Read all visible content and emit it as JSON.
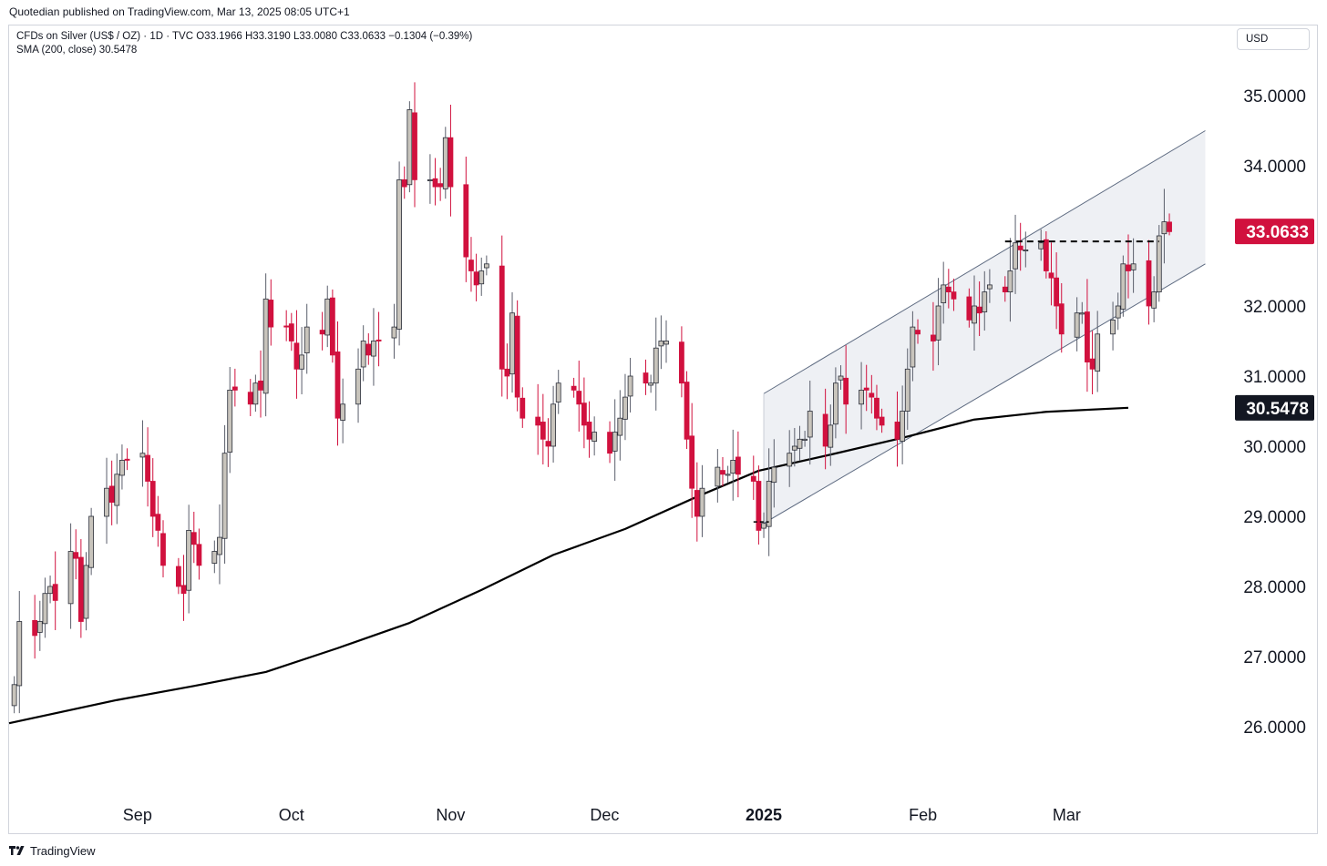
{
  "header": {
    "published": "Quotedian published on TradingView.com, Mar 13, 2025 08:05 UTC+1"
  },
  "legend": {
    "line1": "CFDs on Silver (US$ / OZ) · 1D · TVC  O33.1966  H33.3190  L33.0080  C33.0633  −0.1304 (−0.39%)",
    "line2": "SMA (200, close)  30.5478"
  },
  "currency_button": "USD",
  "footer": {
    "brand": "TradingView"
  },
  "colors": {
    "up_body": "#c8c4bc",
    "up_border": "#2a2e39",
    "down": "#d1113e",
    "wick": "#5a5e6b",
    "sma": "#000000",
    "channel_fill": "#eef0f4",
    "channel_line": "#5d6a80",
    "last_price_bg": "#d1113e",
    "sma_tag_bg": "#131722"
  },
  "chart_data": {
    "type": "candlestick",
    "instrument": "CFDs on Silver (US$ / OZ)",
    "interval": "1D",
    "exchange": "TVC",
    "ohlc_last": {
      "open": 33.1966,
      "high": 33.319,
      "low": 33.008,
      "close": 33.0633,
      "change": -0.1304,
      "change_pct": -0.39
    },
    "ylim": [
      25.0,
      36.0
    ],
    "y_ticks": [
      "26.0000",
      "27.0000",
      "28.0000",
      "29.0000",
      "30.0000",
      "31.0000",
      "32.0000",
      "33.0000",
      "34.0000",
      "35.0000"
    ],
    "y_tick_values": [
      26,
      27,
      28,
      29,
      30,
      31,
      32,
      33,
      34,
      35
    ],
    "x_labels": [
      {
        "text": "Sep",
        "bold": false,
        "date": "2024-09-01"
      },
      {
        "text": "Oct",
        "bold": false,
        "date": "2024-10-01"
      },
      {
        "text": "Nov",
        "bold": false,
        "date": "2024-11-01"
      },
      {
        "text": "Dec",
        "bold": false,
        "date": "2024-12-01"
      },
      {
        "text": "2025",
        "bold": true,
        "date": "2025-01-01"
      },
      {
        "text": "Feb",
        "bold": false,
        "date": "2025-02-01"
      },
      {
        "text": "Mar",
        "bold": false,
        "date": "2025-03-01"
      }
    ],
    "x_range": [
      "2024-08-07",
      "2025-04-01"
    ],
    "last_price_tag": "33.0633",
    "sma_tag": "30.5478",
    "closes_series": {
      "name": "",
      "start_date": "2024-08-08",
      "closes": [
        26.6,
        27.5,
        27.3,
        27.5,
        27.9,
        28.0,
        27.8,
        28.5,
        28.4,
        27.5,
        28.3,
        29.0,
        29.4,
        29.2,
        29.6,
        29.8,
        29.8,
        29.9,
        29.5,
        29.0,
        28.8,
        28.3,
        28.0,
        27.9,
        28.8,
        28.6,
        28.3,
        28.5,
        28.7,
        29.9,
        30.8,
        30.8,
        30.6,
        30.9,
        30.8,
        32.1,
        31.7,
        31.7,
        31.5,
        31.1,
        31.3,
        31.7,
        31.6,
        32.1,
        31.3,
        30.4,
        30.6,
        31.1,
        31.5,
        31.3,
        31.5,
        31.5,
        31.7,
        33.8,
        33.7,
        34.8,
        33.8,
        33.8,
        33.7,
        33.7,
        34.4,
        33.7,
        32.7,
        32.5,
        32.3,
        32.5,
        32.6,
        31.1,
        31.0,
        31.9,
        30.7,
        30.4,
        30.3,
        30.1,
        30.0,
        30.6,
        30.9,
        30.8,
        30.6,
        30.3,
        30.1,
        30.2,
        29.9,
        30.2,
        30.4,
        30.7,
        31.0,
        30.9,
        30.9,
        31.4,
        31.5,
        31.5,
        30.9,
        30.1,
        29.4,
        29.0,
        29.4,
        29.7,
        29.6,
        29.6,
        29.8,
        29.6,
        29.5,
        28.8,
        28.9,
        29.5,
        29.7,
        29.9,
        30.0,
        30.1,
        30.1,
        30.5,
        30.0,
        30.3,
        30.9,
        31.0,
        30.6,
        30.8,
        30.8,
        30.7,
        30.4,
        30.3,
        30.1,
        30.5,
        31.1,
        31.7,
        31.6,
        31.5,
        32.0,
        32.3,
        32.2,
        32.1,
        31.8,
        32.0,
        31.9,
        32.2,
        32.3,
        32.2,
        32.5,
        32.9,
        32.8,
        32.8,
        32.9,
        32.5,
        32.4,
        32.0,
        31.6,
        31.9,
        31.9,
        31.2,
        31.1,
        31.6,
        31.8,
        32.0,
        32.6,
        32.5,
        32.6,
        32.0,
        32.2,
        33.0,
        33.2,
        33.06
      ]
    },
    "sma_series": {
      "name": "SMA (200, close)",
      "points": [
        [
          "2024-08-07",
          26.05
        ],
        [
          "2024-08-28",
          26.38
        ],
        [
          "2024-09-12",
          26.58
        ],
        [
          "2024-09-26",
          26.78
        ],
        [
          "2024-10-10",
          27.12
        ],
        [
          "2024-10-24",
          27.48
        ],
        [
          "2024-11-07",
          27.95
        ],
        [
          "2024-11-21",
          28.45
        ],
        [
          "2024-12-05",
          28.82
        ],
        [
          "2024-12-19",
          29.28
        ],
        [
          "2024-12-31",
          29.65
        ],
        [
          "2025-01-14",
          29.88
        ],
        [
          "2025-01-28",
          30.12
        ],
        [
          "2025-02-11",
          30.38
        ],
        [
          "2025-02-25",
          30.49
        ],
        [
          "2025-03-13",
          30.5478
        ]
      ]
    },
    "channel": {
      "upper": [
        [
          "2025-01-01",
          30.75
        ],
        [
          "2025-03-28",
          34.5
        ]
      ],
      "lower": [
        [
          "2025-01-01",
          28.9
        ],
        [
          "2025-03-28",
          32.6
        ]
      ]
    },
    "resistance_line": {
      "from": "2025-02-17",
      "to": "2025-03-19",
      "value": 32.92,
      "style": "dashed"
    },
    "support_line": {
      "from": "2024-12-30",
      "to": "2025-01-02",
      "value": 28.92,
      "style": "dashed"
    }
  }
}
